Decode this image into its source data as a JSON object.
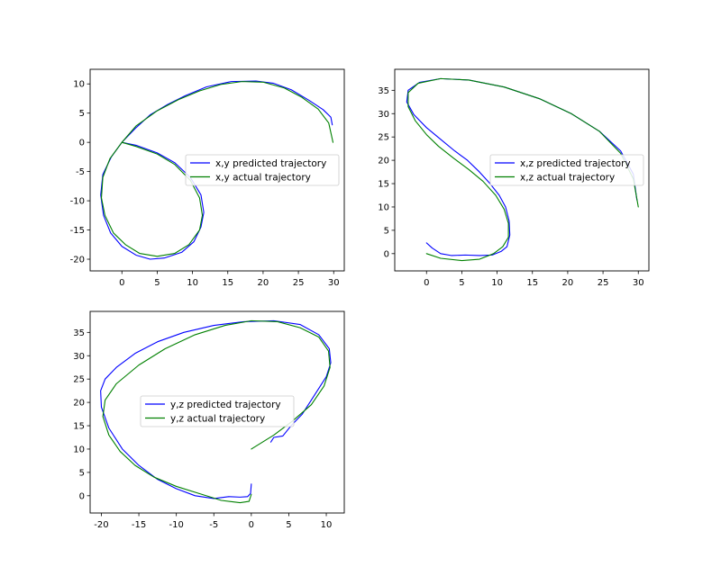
{
  "chart_data": [
    {
      "type": "line",
      "xlim": [
        -4.5,
        31.5
      ],
      "ylim": [
        -22,
        12.5
      ],
      "xticks": [
        "0",
        "5",
        "10",
        "15",
        "20",
        "25",
        "30"
      ],
      "yticks": [
        "10",
        "5",
        "0",
        "-5",
        "-10",
        "-15",
        "-20"
      ],
      "legend_position": "center-right",
      "grid": false,
      "series": [
        {
          "name": "x,y predicted trajectory",
          "color": "#0000ff",
          "x": [
            0,
            2,
            5,
            7.5,
            9.7,
            11.2,
            11.6,
            11.2,
            10.2,
            8.5,
            6,
            4,
            2,
            0,
            -1.6,
            -2.6,
            -3,
            -2.7,
            -1.5,
            0,
            2,
            4,
            6.5,
            9,
            12,
            15.5,
            19,
            21.5,
            24,
            26.5,
            28.5,
            29.6,
            29.8
          ],
          "y": [
            0,
            -0.5,
            -1.8,
            -3.5,
            -6,
            -9,
            -12,
            -14.5,
            -17,
            -18.8,
            -19.8,
            -20,
            -19.3,
            -17.8,
            -15.5,
            -12.5,
            -9,
            -5.5,
            -2.5,
            0,
            2.5,
            4.7,
            6.5,
            8,
            9.5,
            10.4,
            10.5,
            10.1,
            9,
            7.2,
            5.6,
            4.3,
            3
          ]
        },
        {
          "name": "x,y actual trajectory",
          "color": "#008000",
          "x": [
            0,
            2,
            5,
            7.5,
            9.7,
            11,
            11.4,
            11,
            9.5,
            7.5,
            5,
            2.5,
            0.5,
            -1.2,
            -2.4,
            -2.9,
            -2.7,
            -1.7,
            0,
            2,
            5,
            8,
            11,
            14,
            17,
            20,
            23,
            25.5,
            27.8,
            29.3,
            29.9
          ],
          "y": [
            0,
            -0.7,
            -2,
            -3.8,
            -6.5,
            -9.5,
            -12.5,
            -15,
            -17.5,
            -19,
            -19.5,
            -19,
            -17.5,
            -15.5,
            -12.5,
            -9.5,
            -6,
            -2.8,
            0,
            2.8,
            5.4,
            7.3,
            8.8,
            9.9,
            10.4,
            10.3,
            9.3,
            7.7,
            5.7,
            3.3,
            0
          ]
        }
      ]
    },
    {
      "type": "line",
      "xlim": [
        -4.5,
        31.5
      ],
      "ylim": [
        -3.7,
        39.5
      ],
      "xticks": [
        "0",
        "5",
        "10",
        "15",
        "20",
        "25",
        "30"
      ],
      "yticks": [
        "35",
        "30",
        "25",
        "20",
        "15",
        "10",
        "5",
        "0"
      ],
      "legend_position": "center-right",
      "grid": false,
      "series": [
        {
          "name": "x,z predicted trajectory",
          "color": "#0000ff",
          "x": [
            0,
            0.8,
            2,
            3.5,
            5.5,
            7.5,
            9.3,
            10.6,
            11.4,
            11.8,
            11.7,
            11.2,
            10.3,
            9,
            7.5,
            5.8,
            4,
            2,
            0,
            -1.8,
            -2.8,
            -2.6,
            -1,
            2,
            6,
            11,
            16,
            20.5,
            24.5,
            27.5,
            29.3,
            29.8
          ],
          "y": [
            2.3,
            1.2,
            0,
            -0.4,
            -0.3,
            -0.4,
            -0.3,
            0.5,
            1.5,
            4,
            7,
            10,
            12.5,
            15,
            17.5,
            20,
            22,
            24.5,
            27,
            29.8,
            32.5,
            35,
            36.7,
            37.5,
            37.2,
            35.7,
            33.2,
            30,
            26.2,
            22,
            17,
            11.5
          ]
        },
        {
          "name": "x,z actual trajectory",
          "color": "#008000",
          "x": [
            0,
            2,
            5,
            7.5,
            9.5,
            10.8,
            11.6,
            11.6,
            11,
            9.8,
            8,
            6,
            3.8,
            1.7,
            0,
            -1.6,
            -2.6,
            -2.6,
            -1.2,
            2,
            6,
            11,
            16,
            20.5,
            24.5,
            27.5,
            29.3,
            30
          ],
          "y": [
            0,
            -1,
            -1.5,
            -1.2,
            0,
            1.5,
            3.5,
            6.5,
            9.5,
            12.5,
            15.5,
            18,
            20.5,
            23,
            25.5,
            28.5,
            31.5,
            34.5,
            36.5,
            37.5,
            37.2,
            35.7,
            33.2,
            30,
            26.2,
            21.5,
            16,
            10
          ]
        }
      ]
    },
    {
      "type": "line",
      "xlim": [
        -21.5,
        12.4
      ],
      "ylim": [
        -3.7,
        39.5
      ],
      "xticks": [
        "-20",
        "-15",
        "-10",
        "-5",
        "0",
        "5",
        "10"
      ],
      "yticks": [
        "35",
        "30",
        "25",
        "20",
        "15",
        "10",
        "5",
        "0"
      ],
      "legend_position": "center-left",
      "grid": false,
      "series": [
        {
          "name": "y,z predicted trajectory",
          "color": "#0000ff",
          "x": [
            0,
            -0.1,
            -0.5,
            -1.5,
            -3,
            -5,
            -7.5,
            -10,
            -12.5,
            -15,
            -17.2,
            -19,
            -20,
            -20.1,
            -19.5,
            -18,
            -15.5,
            -12.5,
            -9,
            -5,
            -1,
            3,
            6.5,
            9,
            10.4,
            10.6,
            10,
            9,
            8,
            6.8,
            5.3,
            4.2,
            3,
            2.6
          ],
          "y": [
            2.5,
            0.5,
            -0.2,
            -0.3,
            -0.2,
            -0.6,
            0,
            1.5,
            3.5,
            6.5,
            10,
            14.5,
            19,
            22.5,
            25,
            27.5,
            30.5,
            33,
            35,
            36.5,
            37.3,
            37.5,
            36.7,
            34.5,
            31.5,
            28.5,
            25.5,
            23,
            20.5,
            17.5,
            15,
            12.8,
            12.5,
            11.5
          ]
        },
        {
          "name": "y,z actual trajectory",
          "color": "#008000",
          "x": [
            0,
            -0.3,
            -1.5,
            -4,
            -7,
            -10,
            -13,
            -15.5,
            -17.5,
            -19,
            -19.8,
            -19.5,
            -18,
            -15,
            -11.5,
            -7.5,
            -3.5,
            0,
            3.5,
            6.5,
            9,
            10.3,
            10.5,
            9.7,
            8,
            5.5,
            3,
            0
          ],
          "y": [
            0.3,
            -1.2,
            -1.5,
            -1,
            0.5,
            2,
            4,
            6.5,
            9.5,
            13,
            17,
            20.5,
            24,
            28,
            31.5,
            34.5,
            36.5,
            37.5,
            37.3,
            36,
            34,
            31,
            27.5,
            23.5,
            19.5,
            16,
            13,
            10
          ]
        }
      ]
    }
  ]
}
